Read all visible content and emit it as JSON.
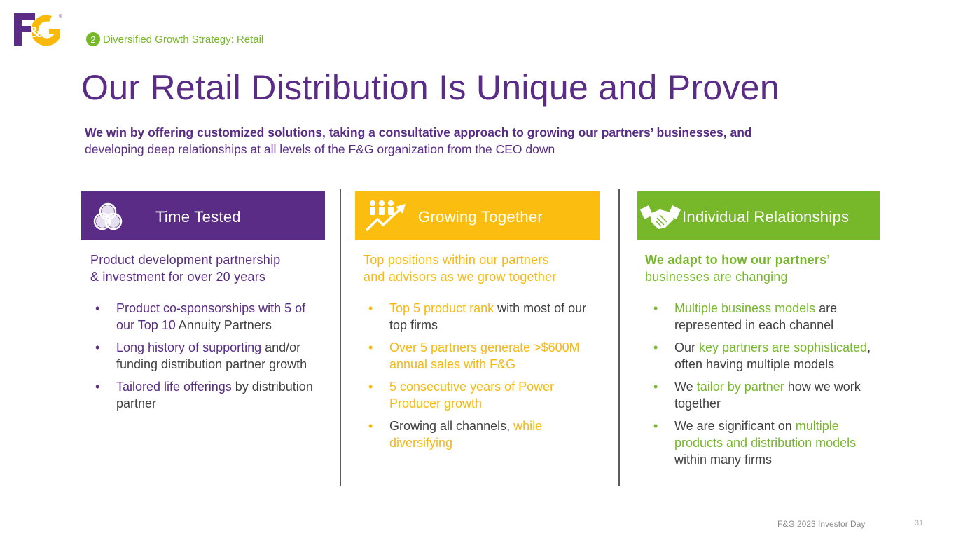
{
  "logo": {
    "text": "F&G"
  },
  "section": {
    "number": "2",
    "label": "Diversified Growth Strategy:  Retail"
  },
  "title": "Our Retail Distribution Is Unique and Proven",
  "subtitle": {
    "bold": "We win by offering customized solutions, taking a consultative approach to growing our partners’ businesses, and",
    "rest": "developing deep relationships at all levels of the F&G organization from the CEO down"
  },
  "columns": [
    {
      "banner": "Time Tested",
      "icon": "venn-circles-icon",
      "color": "#5a2c86",
      "lead": [
        "Product development partnership",
        "& investment for over 20 years"
      ],
      "bullets": [
        {
          "parts": [
            {
              "t": "Product co-sponsorships with 5 of our Top 10",
              "c": "purple"
            },
            {
              "t": " Annuity Partners",
              "c": "dark"
            }
          ]
        },
        {
          "parts": [
            {
              "t": "Long history of supporting",
              "c": "purple"
            },
            {
              "t": " and/or funding distribution partner growth",
              "c": "dark"
            }
          ]
        },
        {
          "parts": [
            {
              "t": "Tailored life offerings",
              "c": "purple"
            },
            {
              "t": " by distribution partner",
              "c": "dark"
            }
          ]
        }
      ]
    },
    {
      "banner": "Growing Together",
      "icon": "people-growth-arrow-icon",
      "color": "#f8b90c",
      "lead": [
        "Top positions within our partners",
        "and advisors as we grow together"
      ],
      "bullets": [
        {
          "parts": [
            {
              "t": "Top 5 product rank",
              "c": "gold"
            },
            {
              "t": " with most of our top firms",
              "c": "dark"
            }
          ]
        },
        {
          "parts": [
            {
              "t": "Over 5 partners generate >$600M annual sales with F&G",
              "c": "gold"
            }
          ]
        },
        {
          "parts": [
            {
              "t": "5 consecutive years of Power Producer growth",
              "c": "gold"
            }
          ]
        },
        {
          "parts": [
            {
              "t": "Growing all channels, ",
              "c": "dark"
            },
            {
              "t": "while diversifying",
              "c": "gold"
            }
          ]
        }
      ]
    },
    {
      "banner": "Individual Relationships",
      "icon": "handshake-icon",
      "color": "#76b82a",
      "lead_bold": "We adapt to how our partners’",
      "lead_rest": "businesses are changing",
      "bullets": [
        {
          "parts": [
            {
              "t": "Multiple business models",
              "c": "green"
            },
            {
              "t": " are represented in each channel",
              "c": "dark"
            }
          ]
        },
        {
          "parts": [
            {
              "t": "Our ",
              "c": "dark"
            },
            {
              "t": "key partners are sophisticated",
              "c": "green"
            },
            {
              "t": ", often having multiple models",
              "c": "dark"
            }
          ]
        },
        {
          "parts": [
            {
              "t": "We ",
              "c": "dark"
            },
            {
              "t": "tailor by partner",
              "c": "green"
            },
            {
              "t": " how we work together",
              "c": "dark"
            }
          ]
        },
        {
          "parts": [
            {
              "t": "We are significant on ",
              "c": "dark"
            },
            {
              "t": "multiple products and distribution models",
              "c": "green"
            },
            {
              "t": " within many firms",
              "c": "dark"
            }
          ]
        }
      ]
    }
  ],
  "footer": "F&G 2023 Investor Day",
  "page_number": "31"
}
